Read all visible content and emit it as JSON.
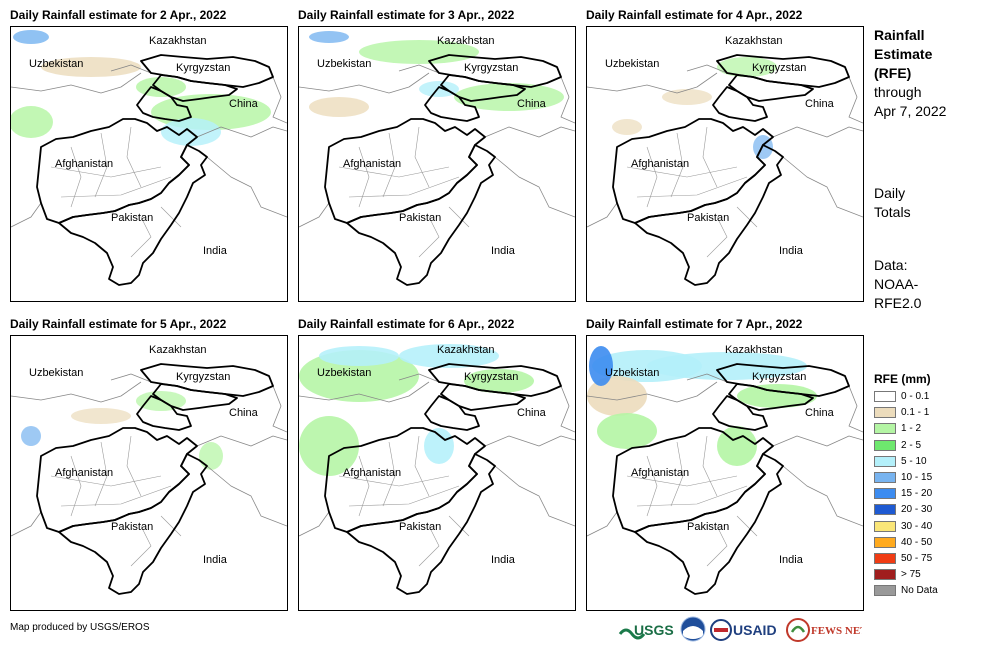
{
  "panels": [
    {
      "title": "Daily Rainfall estimate for 2 Apr., 2022",
      "labels": {
        "kazakhstan": "Kazakhstan",
        "uzbekistan": "Uzbekistan",
        "kyrgyzstan": "Kyrgyzstan",
        "china": "China",
        "afghanistan": "Afghanistan",
        "pakistan": "Pakistan",
        "india": "India"
      },
      "rain_level": 0.55
    },
    {
      "title": "Daily Rainfall estimate for 3 Apr., 2022",
      "labels": {
        "kazakhstan": "Kazakhstan",
        "uzbekistan": "Uzbekistan",
        "kyrgyzstan": "Kyrgyzstan",
        "china": "China",
        "afghanistan": "Afghanistan",
        "pakistan": "Pakistan",
        "india": "India"
      },
      "rain_level": 0.5
    },
    {
      "title": "Daily Rainfall estimate for 4 Apr., 2022",
      "labels": {
        "kazakhstan": "Kazakhstan",
        "uzbekistan": "Uzbekistan",
        "kyrgyzstan": "Kyrgyzstan",
        "china": "China",
        "afghanistan": "Afghanistan",
        "pakistan": "Pakistan",
        "india": "India"
      },
      "rain_level": 0.3
    },
    {
      "title": "Daily Rainfall estimate for 5 Apr., 2022",
      "labels": {
        "kazakhstan": "Kazakhstan",
        "uzbekistan": "Uzbekistan",
        "kyrgyzstan": "Kyrgyzstan",
        "china": "China",
        "afghanistan": "Afghanistan",
        "pakistan": "Pakistan",
        "india": "India"
      },
      "rain_level": 0.3
    },
    {
      "title": "Daily Rainfall estimate for 6 Apr., 2022",
      "labels": {
        "kazakhstan": "Kazakhstan",
        "uzbekistan": "Uzbekistan",
        "kyrgyzstan": "Kyrgyzstan",
        "china": "China",
        "afghanistan": "Afghanistan",
        "pakistan": "Pakistan",
        "india": "India"
      },
      "rain_level": 0.7
    },
    {
      "title": "Daily Rainfall estimate for 7 Apr., 2022",
      "labels": {
        "kazakhstan": "Kazakhstan",
        "uzbekistan": "Uzbekistan",
        "kyrgyzstan": "Kyrgyzstan",
        "china": "China",
        "afghanistan": "Afghanistan",
        "pakistan": "Pakistan",
        "india": "India"
      },
      "rain_level": 0.75
    }
  ],
  "side": {
    "heading_line1": "Rainfall",
    "heading_line2": "Estimate",
    "heading_line3": "(RFE)",
    "through_label": "through",
    "through_date": "Apr 7, 2022",
    "totals_line1": "Daily",
    "totals_line2": "Totals",
    "data_line1": "Data:",
    "data_line2": "NOAA-",
    "data_line3": "RFE2.0"
  },
  "legend": {
    "title": "RFE (mm)",
    "items": [
      {
        "label": "0 - 0.1",
        "color": "#ffffff"
      },
      {
        "label": "0.1 - 1",
        "color": "#ecdcbc"
      },
      {
        "label": "1 - 2",
        "color": "#b4f5a4"
      },
      {
        "label": "2 - 5",
        "color": "#6ee86e"
      },
      {
        "label": "5 - 10",
        "color": "#b4f0fa"
      },
      {
        "label": "10 - 15",
        "color": "#78b4f0"
      },
      {
        "label": "15 - 20",
        "color": "#3c8cf0"
      },
      {
        "label": "20 - 30",
        "color": "#1e5ad2"
      },
      {
        "label": "30 - 40",
        "color": "#fae678"
      },
      {
        "label": "40 - 50",
        "color": "#ffaa1e"
      },
      {
        "label": "50 - 75",
        "color": "#f03c14"
      },
      {
        "label": "> 75",
        "color": "#a01e1e"
      },
      {
        "label": "No Data",
        "color": "#999999"
      }
    ]
  },
  "credit": "Map produced by USGS/EROS",
  "logos": {
    "usgs": "USGS",
    "usaid": "USAID",
    "fewsnet": "FEWS NET"
  }
}
